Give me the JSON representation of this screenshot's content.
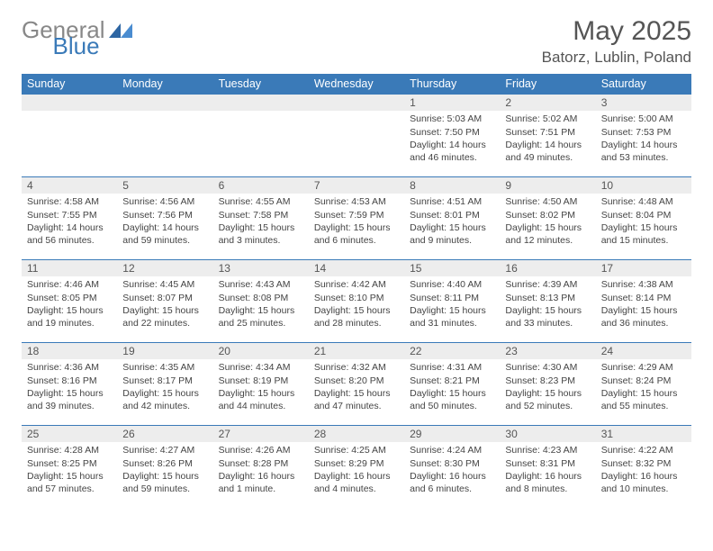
{
  "logo": {
    "general": "General",
    "blue": "Blue"
  },
  "title": "May 2025",
  "location": "Batorz, Lublin, Poland",
  "colors": {
    "header_bg": "#3a7ab8",
    "header_text": "#ffffff",
    "daynum_bg": "#ededed",
    "border": "#3a7ab8",
    "body_text": "#444444",
    "page_bg": "#ffffff"
  },
  "typography": {
    "title_fontsize_pt": 22,
    "location_fontsize_pt": 13,
    "header_fontsize_pt": 9,
    "cell_fontsize_pt": 8
  },
  "dayHeaders": [
    "Sunday",
    "Monday",
    "Tuesday",
    "Wednesday",
    "Thursday",
    "Friday",
    "Saturday"
  ],
  "weeks": [
    [
      {
        "day": "",
        "sunrise": "",
        "sunset": "",
        "daylight": ""
      },
      {
        "day": "",
        "sunrise": "",
        "sunset": "",
        "daylight": ""
      },
      {
        "day": "",
        "sunrise": "",
        "sunset": "",
        "daylight": ""
      },
      {
        "day": "",
        "sunrise": "",
        "sunset": "",
        "daylight": ""
      },
      {
        "day": "1",
        "sunrise": "Sunrise: 5:03 AM",
        "sunset": "Sunset: 7:50 PM",
        "daylight": "Daylight: 14 hours and 46 minutes."
      },
      {
        "day": "2",
        "sunrise": "Sunrise: 5:02 AM",
        "sunset": "Sunset: 7:51 PM",
        "daylight": "Daylight: 14 hours and 49 minutes."
      },
      {
        "day": "3",
        "sunrise": "Sunrise: 5:00 AM",
        "sunset": "Sunset: 7:53 PM",
        "daylight": "Daylight: 14 hours and 53 minutes."
      }
    ],
    [
      {
        "day": "4",
        "sunrise": "Sunrise: 4:58 AM",
        "sunset": "Sunset: 7:55 PM",
        "daylight": "Daylight: 14 hours and 56 minutes."
      },
      {
        "day": "5",
        "sunrise": "Sunrise: 4:56 AM",
        "sunset": "Sunset: 7:56 PM",
        "daylight": "Daylight: 14 hours and 59 minutes."
      },
      {
        "day": "6",
        "sunrise": "Sunrise: 4:55 AM",
        "sunset": "Sunset: 7:58 PM",
        "daylight": "Daylight: 15 hours and 3 minutes."
      },
      {
        "day": "7",
        "sunrise": "Sunrise: 4:53 AM",
        "sunset": "Sunset: 7:59 PM",
        "daylight": "Daylight: 15 hours and 6 minutes."
      },
      {
        "day": "8",
        "sunrise": "Sunrise: 4:51 AM",
        "sunset": "Sunset: 8:01 PM",
        "daylight": "Daylight: 15 hours and 9 minutes."
      },
      {
        "day": "9",
        "sunrise": "Sunrise: 4:50 AM",
        "sunset": "Sunset: 8:02 PM",
        "daylight": "Daylight: 15 hours and 12 minutes."
      },
      {
        "day": "10",
        "sunrise": "Sunrise: 4:48 AM",
        "sunset": "Sunset: 8:04 PM",
        "daylight": "Daylight: 15 hours and 15 minutes."
      }
    ],
    [
      {
        "day": "11",
        "sunrise": "Sunrise: 4:46 AM",
        "sunset": "Sunset: 8:05 PM",
        "daylight": "Daylight: 15 hours and 19 minutes."
      },
      {
        "day": "12",
        "sunrise": "Sunrise: 4:45 AM",
        "sunset": "Sunset: 8:07 PM",
        "daylight": "Daylight: 15 hours and 22 minutes."
      },
      {
        "day": "13",
        "sunrise": "Sunrise: 4:43 AM",
        "sunset": "Sunset: 8:08 PM",
        "daylight": "Daylight: 15 hours and 25 minutes."
      },
      {
        "day": "14",
        "sunrise": "Sunrise: 4:42 AM",
        "sunset": "Sunset: 8:10 PM",
        "daylight": "Daylight: 15 hours and 28 minutes."
      },
      {
        "day": "15",
        "sunrise": "Sunrise: 4:40 AM",
        "sunset": "Sunset: 8:11 PM",
        "daylight": "Daylight: 15 hours and 31 minutes."
      },
      {
        "day": "16",
        "sunrise": "Sunrise: 4:39 AM",
        "sunset": "Sunset: 8:13 PM",
        "daylight": "Daylight: 15 hours and 33 minutes."
      },
      {
        "day": "17",
        "sunrise": "Sunrise: 4:38 AM",
        "sunset": "Sunset: 8:14 PM",
        "daylight": "Daylight: 15 hours and 36 minutes."
      }
    ],
    [
      {
        "day": "18",
        "sunrise": "Sunrise: 4:36 AM",
        "sunset": "Sunset: 8:16 PM",
        "daylight": "Daylight: 15 hours and 39 minutes."
      },
      {
        "day": "19",
        "sunrise": "Sunrise: 4:35 AM",
        "sunset": "Sunset: 8:17 PM",
        "daylight": "Daylight: 15 hours and 42 minutes."
      },
      {
        "day": "20",
        "sunrise": "Sunrise: 4:34 AM",
        "sunset": "Sunset: 8:19 PM",
        "daylight": "Daylight: 15 hours and 44 minutes."
      },
      {
        "day": "21",
        "sunrise": "Sunrise: 4:32 AM",
        "sunset": "Sunset: 8:20 PM",
        "daylight": "Daylight: 15 hours and 47 minutes."
      },
      {
        "day": "22",
        "sunrise": "Sunrise: 4:31 AM",
        "sunset": "Sunset: 8:21 PM",
        "daylight": "Daylight: 15 hours and 50 minutes."
      },
      {
        "day": "23",
        "sunrise": "Sunrise: 4:30 AM",
        "sunset": "Sunset: 8:23 PM",
        "daylight": "Daylight: 15 hours and 52 minutes."
      },
      {
        "day": "24",
        "sunrise": "Sunrise: 4:29 AM",
        "sunset": "Sunset: 8:24 PM",
        "daylight": "Daylight: 15 hours and 55 minutes."
      }
    ],
    [
      {
        "day": "25",
        "sunrise": "Sunrise: 4:28 AM",
        "sunset": "Sunset: 8:25 PM",
        "daylight": "Daylight: 15 hours and 57 minutes."
      },
      {
        "day": "26",
        "sunrise": "Sunrise: 4:27 AM",
        "sunset": "Sunset: 8:26 PM",
        "daylight": "Daylight: 15 hours and 59 minutes."
      },
      {
        "day": "27",
        "sunrise": "Sunrise: 4:26 AM",
        "sunset": "Sunset: 8:28 PM",
        "daylight": "Daylight: 16 hours and 1 minute."
      },
      {
        "day": "28",
        "sunrise": "Sunrise: 4:25 AM",
        "sunset": "Sunset: 8:29 PM",
        "daylight": "Daylight: 16 hours and 4 minutes."
      },
      {
        "day": "29",
        "sunrise": "Sunrise: 4:24 AM",
        "sunset": "Sunset: 8:30 PM",
        "daylight": "Daylight: 16 hours and 6 minutes."
      },
      {
        "day": "30",
        "sunrise": "Sunrise: 4:23 AM",
        "sunset": "Sunset: 8:31 PM",
        "daylight": "Daylight: 16 hours and 8 minutes."
      },
      {
        "day": "31",
        "sunrise": "Sunrise: 4:22 AM",
        "sunset": "Sunset: 8:32 PM",
        "daylight": "Daylight: 16 hours and 10 minutes."
      }
    ]
  ]
}
